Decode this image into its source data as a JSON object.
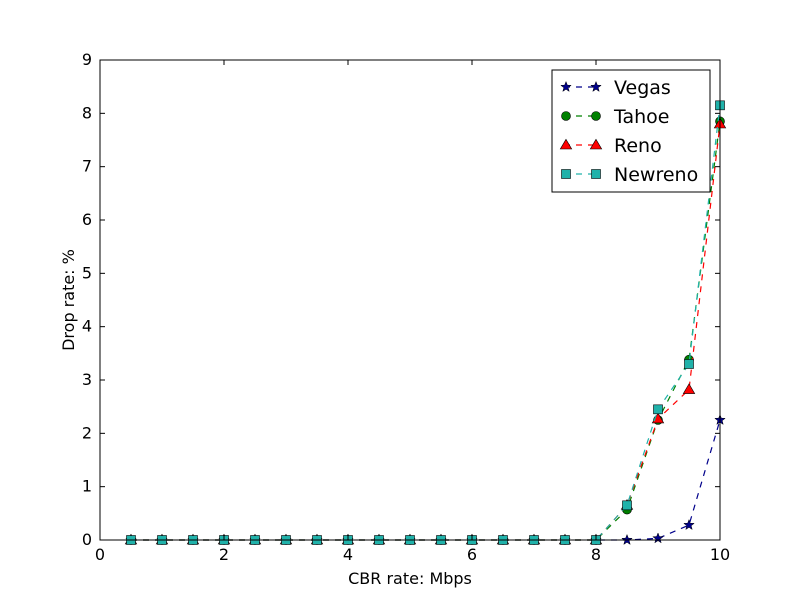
{
  "chart_data": {
    "type": "line",
    "title": "",
    "xlabel": "CBR rate: Mbps",
    "ylabel": "Drop rate: %",
    "xlim": [
      0,
      10
    ],
    "ylim": [
      0,
      9
    ],
    "xticks": [
      "0",
      "2",
      "4",
      "6",
      "8",
      "10"
    ],
    "yticks": [
      "0",
      "1",
      "2",
      "3",
      "4",
      "5",
      "6",
      "7",
      "8",
      "9"
    ],
    "grid": false,
    "legend_position": "top-right",
    "x": [
      0.5,
      1.0,
      1.5,
      2.0,
      2.5,
      3.0,
      3.5,
      4.0,
      4.5,
      5.0,
      5.5,
      6.0,
      6.5,
      7.0,
      7.5,
      8.0,
      8.5,
      9.0,
      9.5,
      10.0
    ],
    "series": [
      {
        "name": "Vegas",
        "color": "#00008b",
        "marker": "star",
        "values": [
          0,
          0,
          0,
          0,
          0,
          0,
          0,
          0,
          0,
          0,
          0,
          0,
          0,
          0,
          0,
          0,
          0,
          0.03,
          0.28,
          2.25
        ]
      },
      {
        "name": "Tahoe",
        "color": "#008000",
        "marker": "circle",
        "values": [
          0,
          0,
          0,
          0,
          0,
          0,
          0,
          0,
          0,
          0,
          0,
          0,
          0,
          0,
          0,
          0,
          0.57,
          2.25,
          3.38,
          7.85
        ]
      },
      {
        "name": "Reno",
        "color": "#ff0000",
        "marker": "triangle",
        "values": [
          0,
          0,
          0,
          0,
          0,
          0,
          0,
          0,
          0,
          0,
          0,
          0,
          0,
          0,
          0,
          0,
          0.65,
          2.27,
          2.82,
          7.8
        ]
      },
      {
        "name": "Newreno",
        "color": "#20b2aa",
        "marker": "square",
        "values": [
          0,
          0,
          0,
          0,
          0,
          0,
          0,
          0,
          0,
          0,
          0,
          0,
          0,
          0,
          0,
          0,
          0.65,
          2.45,
          3.3,
          8.15
        ]
      }
    ]
  }
}
